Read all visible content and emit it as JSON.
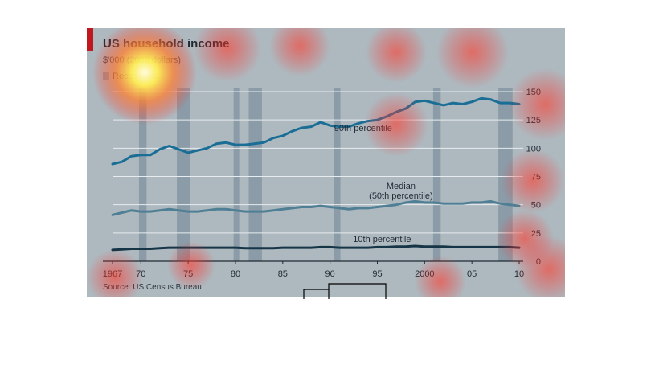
{
  "chart_data": {
    "type": "line",
    "title": "US household income",
    "subtitle": "$'000 (2009 dollars)",
    "legend_label": "Recessions",
    "source": "Source: US Census Bureau",
    "x_tick_labels": [
      "1967",
      "70",
      "75",
      "80",
      "85",
      "90",
      "95",
      "2000",
      "05",
      "10"
    ],
    "x_ticks": [
      1967,
      1970,
      1975,
      1980,
      1985,
      1990,
      1995,
      2000,
      2005,
      2010
    ],
    "y_ticks": [
      0,
      25,
      50,
      75,
      100,
      125,
      150
    ],
    "xlim": [
      1967,
      2010
    ],
    "ylim": [
      0,
      150
    ],
    "grid": true,
    "recessions": [
      [
        1969.8,
        1970.6
      ],
      [
        1973.8,
        1975.2
      ],
      [
        1979.8,
        1980.4
      ],
      [
        1981.4,
        1982.8
      ],
      [
        1990.4,
        1991.1
      ],
      [
        2000.9,
        2001.7
      ],
      [
        2007.8,
        2009.3
      ]
    ],
    "series": [
      {
        "name": "90th percentile",
        "label_lines": [
          "90th percentile"
        ],
        "color": "#1a6e96",
        "label_x": 1993.5,
        "label_y": 115,
        "values": [
          86,
          88,
          93,
          94,
          94,
          99,
          102,
          99,
          96,
          98,
          100,
          104,
          105,
          103,
          103,
          104,
          105,
          109,
          111,
          115,
          118,
          119,
          123,
          120,
          119,
          119,
          122,
          124,
          125,
          128,
          132,
          135,
          141,
          142,
          140,
          138,
          140,
          139,
          141,
          144,
          143,
          140,
          140,
          139
        ]
      },
      {
        "name": "Median (50th percentile)",
        "label_lines": [
          "Median",
          "(50th percentile)"
        ],
        "color": "#4f7f95",
        "label_x": 1997.5,
        "label_y": 64,
        "values": [
          41,
          43,
          45,
          44,
          44,
          45,
          46,
          45,
          44,
          44,
          45,
          46,
          46,
          45,
          44,
          44,
          44,
          45,
          46,
          47,
          48,
          48,
          49,
          48,
          47,
          46,
          47,
          47,
          48,
          49,
          50,
          52,
          53,
          52,
          52,
          51,
          51,
          51,
          52,
          52,
          53,
          51,
          50,
          49
        ]
      },
      {
        "name": "10th percentile",
        "label_lines": [
          "10th percentile"
        ],
        "color": "#163547",
        "label_x": 1995.5,
        "label_y": 17,
        "values": [
          10,
          10.5,
          11,
          11,
          11,
          11.5,
          12,
          12,
          12,
          12,
          12,
          12,
          12,
          12,
          11.5,
          11.5,
          11.5,
          11.5,
          12,
          12,
          12,
          12,
          12.5,
          12.5,
          12,
          12,
          12,
          12,
          12.5,
          12.5,
          13,
          13,
          13.5,
          13,
          13,
          13,
          12.5,
          12.5,
          12.5,
          12.5,
          12.5,
          12.5,
          12.5,
          12
        ]
      }
    ]
  }
}
